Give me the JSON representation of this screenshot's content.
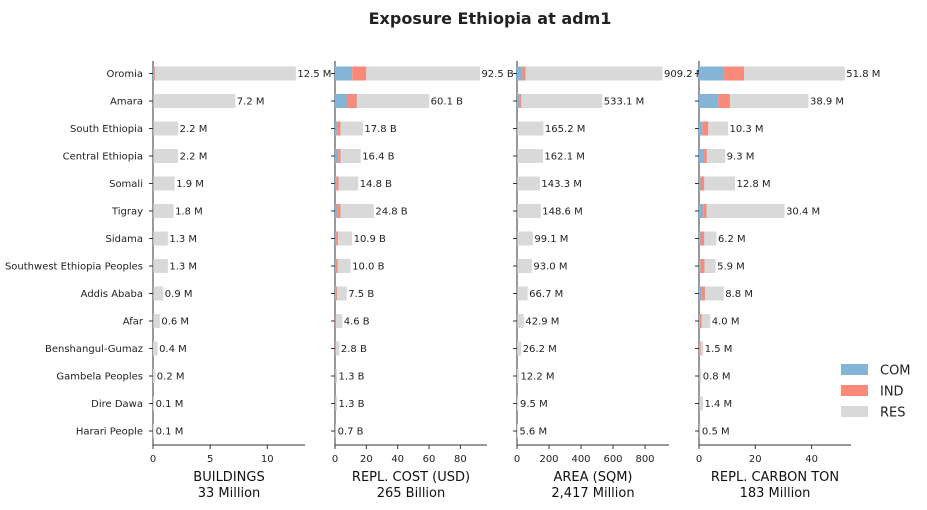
{
  "title": "Exposure Ethiopia at adm1",
  "colors": {
    "COM": "#84b4d6",
    "IND": "#f98a79",
    "RES": "#d9d9d9"
  },
  "legend": [
    "COM",
    "IND",
    "RES"
  ],
  "chart_data": {
    "type": "bar",
    "orientation": "horizontal",
    "stacked": true,
    "title": "Exposure Ethiopia at adm1",
    "legend_position": "lower-right",
    "grid": false,
    "categories": [
      "Oromia",
      "Amara",
      "South Ethiopia",
      "Central Ethiopia",
      "Somali",
      "Tigray",
      "Sidama",
      "Southwest Ethiopia Peoples",
      "Addis Ababa",
      "Afar",
      "Benshangul-Gumaz",
      "Gambela Peoples",
      "Dire Dawa",
      "Harari People"
    ],
    "panels": [
      {
        "xlabel": "BUILDINGS",
        "total": "33 Million",
        "xlim": [
          0,
          13.3
        ],
        "ticks": [
          0,
          5,
          10
        ],
        "labels": [
          "12.5 M",
          "7.2 M",
          "2.2 M",
          "2.2 M",
          "1.9 M",
          "1.8 M",
          "1.3 M",
          "1.3 M",
          "0.9 M",
          "0.6 M",
          "0.4 M",
          "0.2 M",
          "0.1 M",
          "0.1 M"
        ],
        "series": [
          {
            "name": "COM",
            "values": [
              0.1,
              0.05,
              0.02,
              0.02,
              0.01,
              0.01,
              0.01,
              0.01,
              0.02,
              0.01,
              0.0,
              0.0,
              0.0,
              0.0
            ]
          },
          {
            "name": "IND",
            "values": [
              0.1,
              0.05,
              0.02,
              0.02,
              0.02,
              0.02,
              0.01,
              0.01,
              0.02,
              0.01,
              0.0,
              0.0,
              0.0,
              0.0
            ]
          },
          {
            "name": "RES",
            "values": [
              12.3,
              7.1,
              2.16,
              2.16,
              1.87,
              1.77,
              1.28,
              1.28,
              0.86,
              0.58,
              0.4,
              0.2,
              0.1,
              0.1
            ]
          }
        ]
      },
      {
        "xlabel": "REPL. COST (USD)",
        "total": "265 Billion",
        "xlim": [
          0,
          97
        ],
        "ticks": [
          0,
          20,
          40,
          60,
          80
        ],
        "labels": [
          "92.5 B",
          "60.1 B",
          "17.8 B",
          "16.4 B",
          "14.8 B",
          "24.8 B",
          "10.9 B",
          "10.0 B",
          "7.5 B",
          "4.6 B",
          "2.8 B",
          "1.3 B",
          "1.3 B",
          "0.7 B"
        ],
        "series": [
          {
            "name": "COM",
            "values": [
              11.0,
              8.0,
              1.5,
              2.0,
              0.8,
              1.5,
              0.8,
              0.6,
              0.5,
              0.3,
              0.2,
              0.1,
              0.1,
              0.1
            ]
          },
          {
            "name": "IND",
            "values": [
              9.0,
              6.0,
              2.0,
              1.5,
              1.5,
              2.0,
              1.2,
              1.0,
              0.8,
              0.4,
              0.3,
              0.1,
              0.1,
              0.1
            ]
          },
          {
            "name": "RES",
            "values": [
              72.5,
              46.1,
              14.3,
              12.9,
              12.5,
              21.3,
              8.9,
              8.4,
              6.2,
              3.9,
              2.3,
              1.1,
              1.1,
              0.5
            ]
          }
        ]
      },
      {
        "xlabel": "AREA (SQM)",
        "total": "2,417 Million",
        "xlim": [
          0,
          950
        ],
        "ticks": [
          0,
          200,
          400,
          600,
          800
        ],
        "labels": [
          "909.2 M",
          "533.1 M",
          "165.2 M",
          "162.1 M",
          "143.3 M",
          "148.6 M",
          "99.1 M",
          "93.0 M",
          "66.7 M",
          "42.9 M",
          "26.2 M",
          "12.2 M",
          "9.5 M",
          "5.6 M"
        ],
        "series": [
          {
            "name": "COM",
            "values": [
              35,
              15,
              4,
              4,
              3,
              3,
              2,
              2,
              3,
              1,
              1,
              0,
              0,
              0
            ]
          },
          {
            "name": "IND",
            "values": [
              18,
              12,
              3,
              3,
              2,
              2,
              2,
              2,
              2,
              1,
              0,
              0,
              0,
              0
            ]
          },
          {
            "name": "RES",
            "values": [
              856.2,
              506.1,
              158.2,
              155.1,
              138.3,
              143.6,
              95.1,
              89.0,
              61.7,
              40.9,
              25.2,
              12.2,
              9.5,
              5.6
            ]
          }
        ]
      },
      {
        "xlabel": "REPL. CARBON TON",
        "total": "183 Million",
        "xlim": [
          0,
          54
        ],
        "ticks": [
          0,
          20,
          40
        ],
        "labels": [
          "51.8 M",
          "38.9 M",
          "10.3 M",
          "9.3 M",
          "12.8 M",
          "30.4 M",
          "6.2 M",
          "5.9 M",
          "8.8 M",
          "4.0 M",
          "1.5 M",
          "0.8 M",
          "1.4 M",
          "0.5 M"
        ],
        "series": [
          {
            "name": "COM",
            "values": [
              9.0,
              7.0,
              1.3,
              1.8,
              0.7,
              1.5,
              0.7,
              0.6,
              1.0,
              0.3,
              0.2,
              0.1,
              0.1,
              0.1
            ]
          },
          {
            "name": "IND",
            "values": [
              7.0,
              4.0,
              2.0,
              1.0,
              1.2,
              1.2,
              1.2,
              1.4,
              1.2,
              0.6,
              0.4,
              0.1,
              0.1,
              0.1
            ]
          },
          {
            "name": "RES",
            "values": [
              35.8,
              27.9,
              7.0,
              6.5,
              10.9,
              27.7,
              4.3,
              3.9,
              6.6,
              3.1,
              0.9,
              0.6,
              1.2,
              0.3
            ]
          }
        ]
      }
    ]
  }
}
